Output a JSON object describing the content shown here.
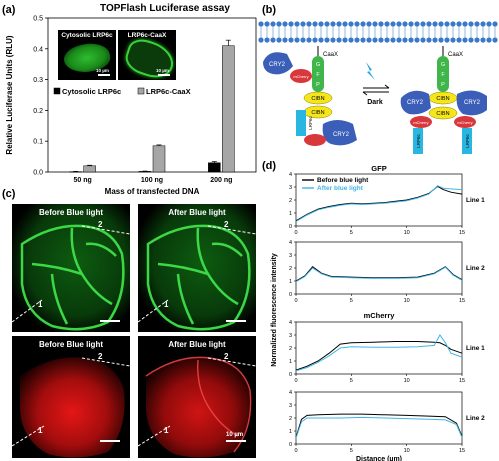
{
  "figure": {
    "panel_a": {
      "label": "(a)",
      "title": "TOPFlash Luciferase assay",
      "inset_left_label": "Cytosolic LRP6c",
      "inset_right_label": "LRP6c-CaaX",
      "inset_scale": "10 µm",
      "colors": {
        "cytosolic": "#000000",
        "caax": "#a6a6a6"
      }
    },
    "panel_b": {
      "label": "(b)",
      "dark_label": "Dark",
      "left_construct": {
        "caax": "CaaX",
        "gfp_letters": [
          "G",
          "F",
          "P"
        ],
        "cry2": "CRY2",
        "mcherry": "mCherry",
        "cibn": [
          "CIBN",
          "CIBN"
        ],
        "lrp6c": "LRP6c"
      },
      "right_construct": {
        "caax": "CaaX",
        "gfp_letters": [
          "G",
          "F",
          "P"
        ],
        "cry2": [
          "CRY2",
          "CRY2"
        ],
        "mcherry": [
          "mCherry",
          "mCherry"
        ],
        "cibn": [
          "CIBN",
          "CIBN"
        ],
        "lrp6c": [
          "LRP6c",
          "LRP6c"
        ]
      }
    },
    "panel_c": {
      "label": "(c)",
      "images": [
        {
          "title": "Before Blue light",
          "channel": "green",
          "line1": "1",
          "line2": "2"
        },
        {
          "title": "After Blue light",
          "channel": "green",
          "line1": "1",
          "line2": "2"
        },
        {
          "title": "Before Blue light",
          "channel": "red",
          "line1": "1",
          "line2": "2"
        },
        {
          "title": "After Blue light",
          "channel": "red",
          "line1": "1",
          "line2": "2"
        }
      ],
      "scale_text": "10 µm"
    },
    "panel_d": {
      "label": "(d)",
      "gfp_title": "GFP",
      "mcherry_title": "mCherry",
      "legend_before": "Before blue light",
      "legend_after": "After blue light",
      "line_labels": [
        "Line 1",
        "Line 2",
        "Line 1",
        "Line 2"
      ],
      "colors": {
        "before": "#000000",
        "after": "#41b6e6"
      }
    }
  },
  "chart_data": [
    {
      "type": "bar",
      "title": "TOPFlash Luciferase assay",
      "xlabel": "Mass of transfected DNA",
      "ylabel": "Relative Luciferase Units (RLU)",
      "categories": [
        "50 ng",
        "100 ng",
        "200 ng"
      ],
      "ylim": [
        0,
        0.5
      ],
      "yticks": [
        "0.0",
        "0.1",
        "0.2",
        "0.3",
        "0.4",
        "0.5"
      ],
      "legend": "middle-left",
      "grid": false,
      "series": [
        {
          "name": "Cytosolic LRP6c",
          "values": [
            0.001,
            0.002,
            0.03
          ],
          "errors": [
            0.001,
            0.001,
            0.004
          ]
        },
        {
          "name": "LRP6c-CaaX",
          "values": [
            0.02,
            0.085,
            0.41
          ],
          "errors": [
            0.002,
            0.003,
            0.018
          ]
        }
      ]
    },
    {
      "type": "line",
      "title": "GFP",
      "panel_label": "Line 1",
      "xlim": [
        0,
        15
      ],
      "ylim": [
        0,
        4
      ],
      "yticks": [
        "0",
        "1",
        "2",
        "3",
        "4"
      ],
      "xticks": [
        "0",
        "5",
        "10",
        "15"
      ],
      "series": [
        {
          "name": "Before blue light",
          "x": [
            0,
            1,
            2,
            3,
            4,
            5,
            6,
            7,
            8,
            9,
            10,
            11,
            12,
            12.8,
            13.3,
            14,
            15
          ],
          "y": [
            0.4,
            0.9,
            1.3,
            1.5,
            1.65,
            1.75,
            1.7,
            1.75,
            1.8,
            1.9,
            2.0,
            2.2,
            2.5,
            3.05,
            2.8,
            2.6,
            2.45
          ]
        },
        {
          "name": "After blue light",
          "x": [
            0,
            1,
            2,
            3,
            4,
            5,
            6,
            7,
            8,
            9,
            10,
            11,
            12,
            12.8,
            13.3,
            14,
            15
          ],
          "y": [
            0.35,
            0.85,
            1.25,
            1.45,
            1.6,
            1.7,
            1.65,
            1.7,
            1.75,
            1.85,
            1.95,
            2.15,
            2.45,
            3.1,
            2.9,
            2.85,
            2.8
          ]
        }
      ]
    },
    {
      "type": "line",
      "panel_label": "Line 2",
      "xlim": [
        0,
        15
      ],
      "ylim": [
        0,
        4
      ],
      "yticks": [
        "0",
        "1",
        "2",
        "3",
        "4"
      ],
      "xticks": [
        "0",
        "5",
        "10",
        "15"
      ],
      "series": [
        {
          "name": "Before blue light",
          "x": [
            0,
            0.8,
            1.5,
            2.3,
            3.2,
            5,
            7,
            9,
            11,
            12.5,
            13.5,
            14.2,
            15
          ],
          "y": [
            1.0,
            1.4,
            2.1,
            1.6,
            1.35,
            1.3,
            1.25,
            1.25,
            1.3,
            1.6,
            2.1,
            1.5,
            1.1
          ]
        },
        {
          "name": "After blue light",
          "x": [
            0,
            0.8,
            1.5,
            2.3,
            3.2,
            5,
            7,
            9,
            11,
            12.5,
            13.5,
            14.2,
            15
          ],
          "y": [
            0.95,
            1.35,
            2.0,
            1.55,
            1.3,
            1.25,
            1.2,
            1.2,
            1.25,
            1.55,
            2.05,
            1.45,
            1.05
          ]
        }
      ]
    },
    {
      "type": "line",
      "title": "mCherry",
      "panel_label": "Line 1",
      "xlim": [
        0,
        15
      ],
      "ylim": [
        0,
        4
      ],
      "yticks": [
        "0",
        "1",
        "2",
        "3",
        "4"
      ],
      "xticks": [
        "0",
        "5",
        "10",
        "15"
      ],
      "series": [
        {
          "name": "Before blue light",
          "x": [
            0,
            1,
            2,
            3,
            4,
            5,
            7,
            9,
            11,
            12.5,
            13,
            13.5,
            14,
            15
          ],
          "y": [
            0.3,
            0.6,
            1.0,
            1.6,
            2.3,
            2.4,
            2.45,
            2.5,
            2.5,
            2.45,
            2.4,
            2.2,
            1.9,
            1.6
          ]
        },
        {
          "name": "After blue light",
          "x": [
            0,
            1,
            2,
            3,
            4,
            5,
            7,
            9,
            11,
            12.5,
            13,
            13.5,
            14,
            15
          ],
          "y": [
            0.25,
            0.5,
            0.9,
            1.4,
            2.0,
            2.1,
            2.05,
            2.05,
            2.1,
            2.2,
            3.0,
            2.4,
            1.6,
            1.3
          ]
        }
      ]
    },
    {
      "type": "line",
      "panel_label": "Line 2",
      "xlim": [
        0,
        15
      ],
      "ylim": [
        0,
        4
      ],
      "yticks": [
        "0",
        "1",
        "2",
        "3",
        "4"
      ],
      "xticks": [
        "0",
        "5",
        "10",
        "15"
      ],
      "xlabel": "Distance (µm)",
      "series": [
        {
          "name": "Before blue light",
          "x": [
            0,
            0.5,
            1,
            2,
            4,
            6,
            8,
            10,
            12,
            13.5,
            14.5,
            15
          ],
          "y": [
            0.5,
            1.9,
            2.2,
            2.25,
            2.3,
            2.3,
            2.25,
            2.2,
            2.15,
            2.1,
            1.6,
            0.6
          ]
        },
        {
          "name": "After blue light",
          "x": [
            0,
            0.5,
            1,
            2,
            4,
            6,
            8,
            10,
            12,
            13.5,
            14.5,
            15
          ],
          "y": [
            0.45,
            1.7,
            2.0,
            2.0,
            2.0,
            2.05,
            2.0,
            1.95,
            1.9,
            1.85,
            1.5,
            0.5
          ]
        }
      ]
    }
  ],
  "shared_ylabel_d": "Normalized fluorescence intensity"
}
